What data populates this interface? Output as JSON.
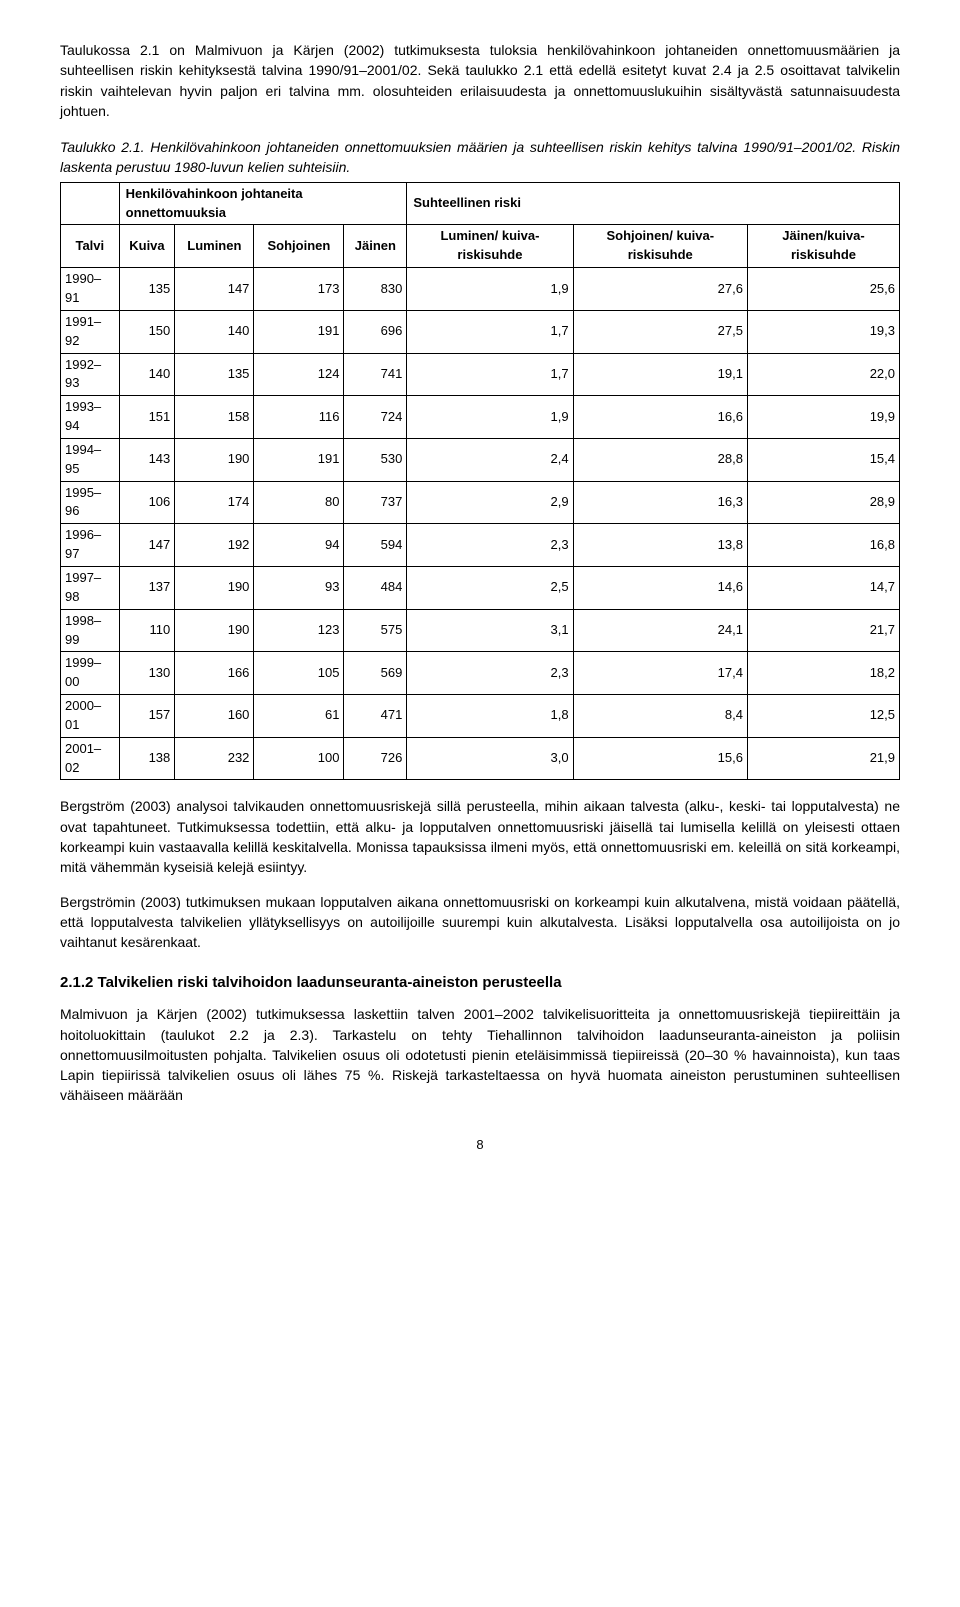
{
  "para1": "Taulukossa 2.1 on Malmivuon ja Kärjen (2002) tutkimuksesta tuloksia henkilövahinkoon johtaneiden onnettomuusmäärien ja suhteellisen riskin kehityksestä talvina 1990/91–2001/02. Sekä taulukko 2.1 että edellä esitetyt kuvat 2.4 ja 2.5 osoittavat talvikelin riskin vaihtelevan hyvin paljon eri talvina mm. olosuhteiden erilaisuudesta ja onnettomuuslukuihin sisältyvästä satunnaisuudesta johtuen.",
  "caption_num": "Taulukko 2.1.",
  "caption_text": "Henkilövahinkoon johtaneiden onnettomuuksien määrien ja suhteellisen riskin kehitys talvina 1990/91–2001/02. Riskin laskenta perustuu 1980-luvun kelien suhteisiin.",
  "table": {
    "group1": "Henkilövahinkoon johtaneita onnettomuuksia",
    "group2": "Suhteellinen riski",
    "col_talvi": "Talvi",
    "col_kuiva": "Kuiva",
    "col_luminen": "Luminen",
    "col_sohjoinen": "Sohjoinen",
    "col_jainen": "Jäinen",
    "col_lkr": "Luminen/ kuiva-riskisuhde",
    "col_skr": "Sohjoinen/ kuiva-riskisuhde",
    "col_jkr": "Jäinen/kuiva-riskisuhde",
    "rows": [
      {
        "t": "1990–91",
        "k": "135",
        "l": "147",
        "s": "173",
        "j": "830",
        "lr": "1,9",
        "sr": "27,6",
        "jr": "25,6"
      },
      {
        "t": "1991–92",
        "k": "150",
        "l": "140",
        "s": "191",
        "j": "696",
        "lr": "1,7",
        "sr": "27,5",
        "jr": "19,3"
      },
      {
        "t": "1992–93",
        "k": "140",
        "l": "135",
        "s": "124",
        "j": "741",
        "lr": "1,7",
        "sr": "19,1",
        "jr": "22,0"
      },
      {
        "t": "1993–94",
        "k": "151",
        "l": "158",
        "s": "116",
        "j": "724",
        "lr": "1,9",
        "sr": "16,6",
        "jr": "19,9"
      },
      {
        "t": "1994–95",
        "k": "143",
        "l": "190",
        "s": "191",
        "j": "530",
        "lr": "2,4",
        "sr": "28,8",
        "jr": "15,4"
      },
      {
        "t": "1995–96",
        "k": "106",
        "l": "174",
        "s": "80",
        "j": "737",
        "lr": "2,9",
        "sr": "16,3",
        "jr": "28,9"
      },
      {
        "t": "1996–97",
        "k": "147",
        "l": "192",
        "s": "94",
        "j": "594",
        "lr": "2,3",
        "sr": "13,8",
        "jr": "16,8"
      },
      {
        "t": "1997–98",
        "k": "137",
        "l": "190",
        "s": "93",
        "j": "484",
        "lr": "2,5",
        "sr": "14,6",
        "jr": "14,7"
      },
      {
        "t": "1998–99",
        "k": "110",
        "l": "190",
        "s": "123",
        "j": "575",
        "lr": "3,1",
        "sr": "24,1",
        "jr": "21,7"
      },
      {
        "t": "1999–00",
        "k": "130",
        "l": "166",
        "s": "105",
        "j": "569",
        "lr": "2,3",
        "sr": "17,4",
        "jr": "18,2"
      },
      {
        "t": "2000–01",
        "k": "157",
        "l": "160",
        "s": "61",
        "j": "471",
        "lr": "1,8",
        "sr": "8,4",
        "jr": "12,5"
      },
      {
        "t": "2001–02",
        "k": "138",
        "l": "232",
        "s": "100",
        "j": "726",
        "lr": "3,0",
        "sr": "15,6",
        "jr": "21,9"
      }
    ]
  },
  "para2": "Bergström (2003) analysoi talvikauden onnettomuusriskejä sillä perusteella, mihin aikaan talvesta (alku-, keski- tai lopputalvesta) ne ovat tapahtuneet. Tutkimuksessa todettiin, että alku- ja lopputalven onnettomuusriski jäisellä tai lumisella kelillä on yleisesti ottaen korkeampi kuin vastaavalla kelillä keskitalvella. Monissa tapauksissa ilmeni myös, että onnettomuusriski em. keleillä on sitä korkeampi, mitä vähemmän kyseisiä kelejä esiintyy.",
  "para3": "Bergströmin (2003) tutkimuksen mukaan lopputalven aikana onnettomuusriski on korkeampi kuin alkutalvena, mistä voidaan päätellä, että lopputalvesta talvikelien yllätyksellisyys on autoilijoille suurempi kuin alkutalvesta. Lisäksi lopputalvella osa autoilijoista on jo vaihtanut kesärenkaat.",
  "heading": "2.1.2 Talvikelien riski talvihoidon laadunseuranta-aineiston perusteella",
  "para4": "Malmivuon ja Kärjen (2002) tutkimuksessa laskettiin talven 2001–2002 talvikelisuoritteita ja onnettomuusriskejä tiepiireittäin ja hoitoluokittain (taulukot 2.2 ja 2.3). Tarkastelu on tehty Tiehallinnon talvihoidon laadunseuranta-aineiston ja poliisin onnettomuusilmoitusten pohjalta. Talvikelien osuus oli odotetusti pienin eteläisimmissä tiepiireissä (20–30 % havainnoista), kun taas Lapin tiepiirissä talvikelien osuus oli lähes 75 %. Riskejä tarkasteltaessa on hyvä huomata aineiston perustuminen suhteellisen vähäiseen määrään",
  "pagenum": "8"
}
